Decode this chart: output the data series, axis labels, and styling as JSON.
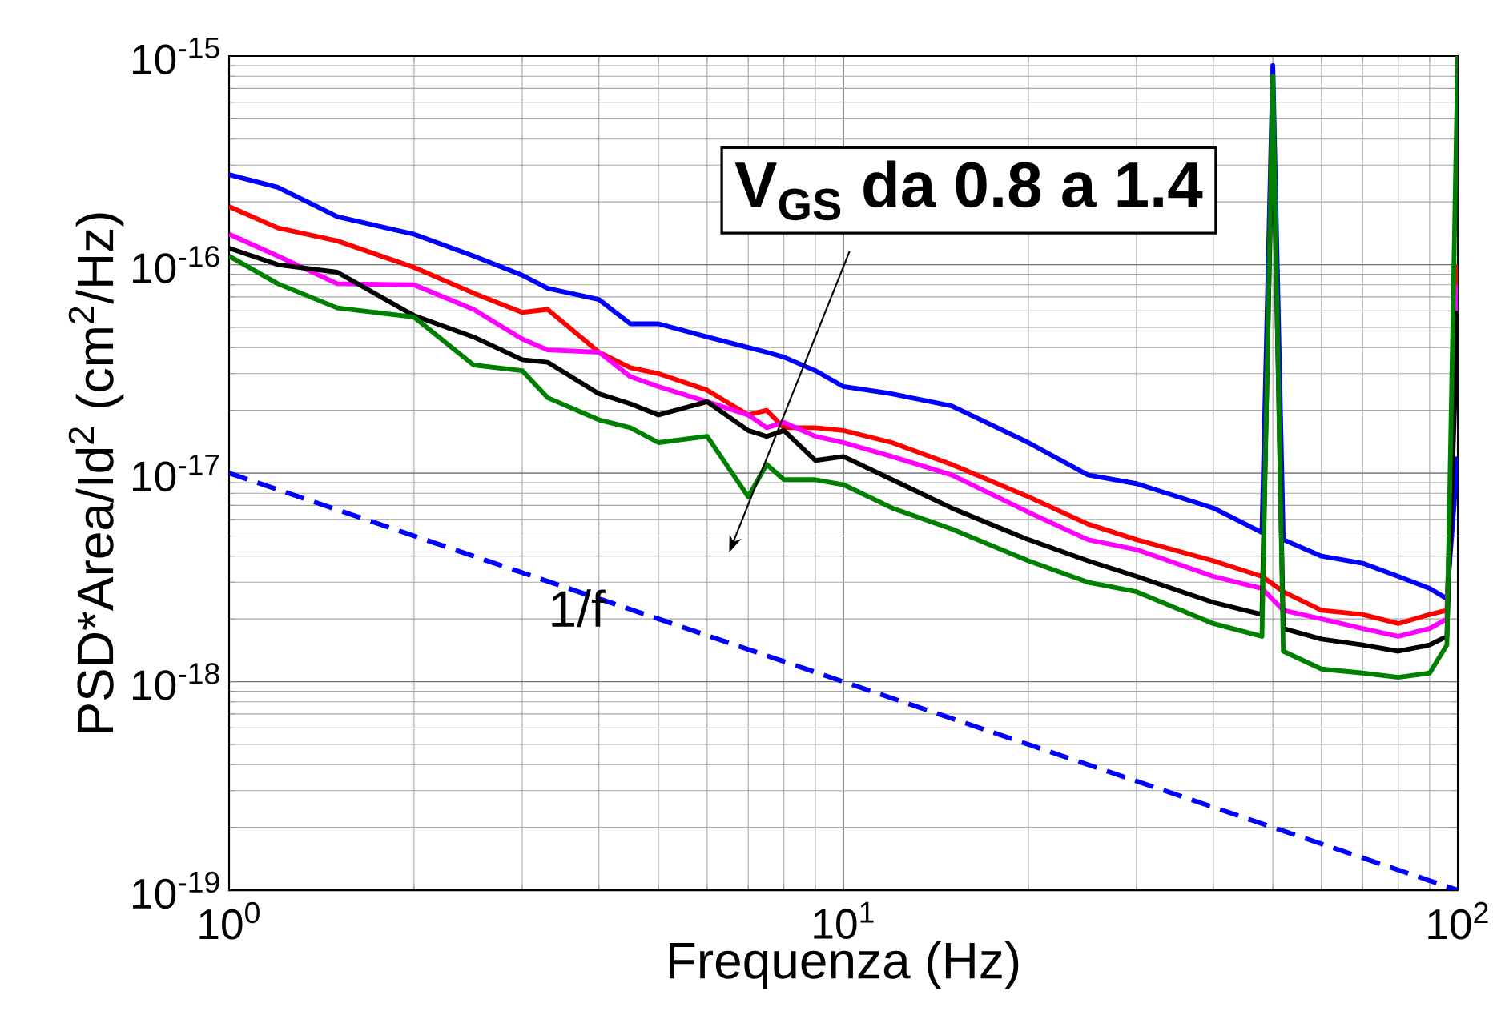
{
  "chart_data": {
    "type": "line",
    "xlabel": "Frequenza (Hz)",
    "ylabel": "PSD*Area/Id$^{2}$ (cm$^{2}$/Hz)",
    "log": "xy",
    "grid": true,
    "xlim": [
      1,
      100
    ],
    "ylim": [
      1e-19,
      1e-15
    ],
    "xticks": [
      {
        "value": 1,
        "label": "10$^{0}$"
      },
      {
        "value": 10,
        "label": "10$^{1}$"
      },
      {
        "value": 100,
        "label": "10$^{2}$"
      }
    ],
    "yticks": [
      {
        "value": 1e-19,
        "label": "10$^{-19}$"
      },
      {
        "value": 1e-18,
        "label": "10$^{-18}$"
      },
      {
        "value": 1e-17,
        "label": "10$^{-17}$"
      },
      {
        "value": 1e-16,
        "label": "10$^{-16}$"
      },
      {
        "value": 1e-15,
        "label": "10$^{-15}$"
      }
    ],
    "x": [
      1,
      1.2,
      1.5,
      2,
      2.5,
      3,
      3.3,
      4,
      4.5,
      5,
      6,
      7,
      7.5,
      8,
      9,
      10,
      12,
      15,
      20,
      25,
      30,
      40,
      48,
      50,
      52,
      60,
      70,
      80,
      90,
      96,
      100
    ],
    "series": [
      {
        "color": "#0000ff",
        "values": [
          2.7e-16,
          2.35e-16,
          1.7e-16,
          1.4e-16,
          1.1e-16,
          8.9e-17,
          7.7e-17,
          6.8e-17,
          5.2e-17,
          5.2e-17,
          4.5e-17,
          4e-17,
          3.8e-17,
          3.6e-17,
          3.1e-17,
          2.6e-17,
          2.4e-17,
          2.1e-17,
          1.4e-17,
          9.8e-18,
          8.9e-18,
          6.8e-18,
          5.2e-18,
          9e-16,
          4.8e-18,
          4e-18,
          3.7e-18,
          3.2e-18,
          2.8e-18,
          2.5e-18,
          1.2e-17
        ]
      },
      {
        "color": "#ff0000",
        "values": [
          1.9e-16,
          1.5e-16,
          1.3e-16,
          9.7e-17,
          7.3e-17,
          5.9e-17,
          6.1e-17,
          3.8e-17,
          3.2e-17,
          3e-17,
          2.5e-17,
          1.9e-17,
          2e-17,
          1.65e-17,
          1.65e-17,
          1.6e-17,
          1.4e-17,
          1.1e-17,
          7.7e-18,
          5.7e-18,
          4.8e-18,
          3.8e-18,
          3.2e-18,
          null,
          2.7e-18,
          2.2e-18,
          2.1e-18,
          1.9e-18,
          2.1e-18,
          2.2e-18,
          1e-16
        ]
      },
      {
        "color": "#ff00ff",
        "values": [
          1.4e-16,
          1.1e-16,
          8.1e-17,
          8e-17,
          6.1e-17,
          4.4e-17,
          3.9e-17,
          3.8e-17,
          2.9e-17,
          2.6e-17,
          2.2e-17,
          1.9e-17,
          1.65e-17,
          1.75e-17,
          1.5e-17,
          1.4e-17,
          1.2e-17,
          9.8e-18,
          6.5e-18,
          4.8e-18,
          4.3e-18,
          3.2e-18,
          2.8e-18,
          null,
          2.2e-18,
          2e-18,
          1.8e-18,
          1.65e-18,
          1.8e-18,
          2e-18,
          8e-17
        ]
      },
      {
        "color": "#000000",
        "values": [
          1.2e-16,
          1e-16,
          9.2e-17,
          5.7e-17,
          4.5e-17,
          3.5e-17,
          3.4e-17,
          2.4e-17,
          2.15e-17,
          1.9e-17,
          2.2e-17,
          1.6e-17,
          1.5e-17,
          1.6e-17,
          1.15e-17,
          1.2e-17,
          9.3e-18,
          6.8e-18,
          4.8e-18,
          3.8e-18,
          3.2e-18,
          2.4e-18,
          2.1e-18,
          6e-16,
          1.8e-18,
          1.6e-18,
          1.5e-18,
          1.4e-18,
          1.5e-18,
          1.65e-18,
          6e-17
        ]
      },
      {
        "color": "#008000",
        "values": [
          1.1e-16,
          8.1e-17,
          6.2e-17,
          5.6e-17,
          3.3e-17,
          3.1e-17,
          2.3e-17,
          1.8e-17,
          1.65e-17,
          1.4e-17,
          1.5e-17,
          7.7e-18,
          1.1e-17,
          9.3e-18,
          9.3e-18,
          8.8e-18,
          6.8e-18,
          5.4e-18,
          3.8e-18,
          3e-18,
          2.7e-18,
          1.9e-18,
          1.65e-18,
          8e-16,
          1.4e-18,
          1.15e-18,
          1.1e-18,
          1.05e-18,
          1.1e-18,
          1.5e-18,
          1e-15
        ]
      },
      {
        "color": "#0000ff",
        "line_style": "dashed",
        "x": [
          1,
          100
        ],
        "values": [
          1e-17,
          1e-19
        ]
      }
    ],
    "annotations": [
      "1/f",
      "V$_{GS}$ da 0.8 a 1.4"
    ]
  }
}
